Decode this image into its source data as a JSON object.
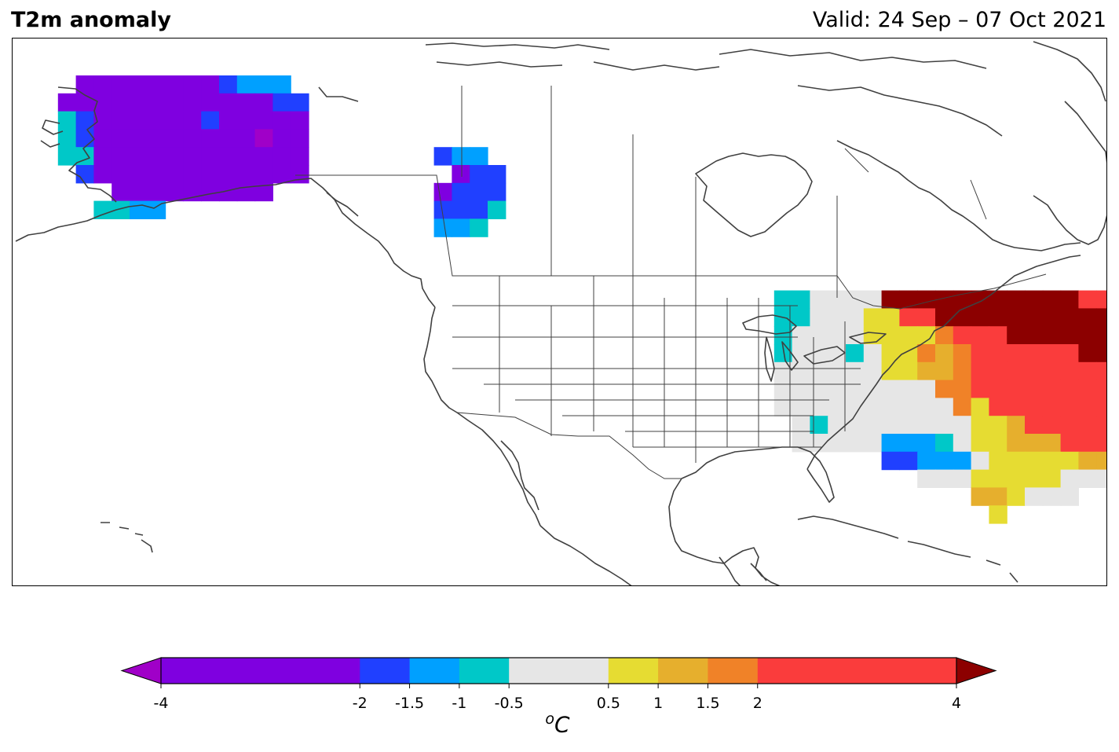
{
  "header": {
    "title": "T2m anomaly",
    "valid": "Valid: 24 Sep – 07 Oct 2021"
  },
  "colorbar": {
    "unit_prefix": "o",
    "unit": "C",
    "extend": "both",
    "boundaries": [
      -4,
      -2,
      -1.5,
      -1,
      -0.5,
      0.5,
      1,
      1.5,
      2,
      4
    ],
    "tick_labels": [
      "-4",
      "-2",
      "-1.5",
      "-1",
      "-0.5",
      "0.5",
      "1",
      "1.5",
      "2",
      "4"
    ],
    "colors": [
      "#7f00e0",
      "#2040ff",
      "#00a0ff",
      "#00c8c8",
      "#e6e6e6",
      "#e6dc32",
      "#e6af2d",
      "#f08228",
      "#fa3c3c"
    ],
    "under_color": "#a000c8",
    "over_color": "#8c0000"
  },
  "map": {
    "region": "North America",
    "coastline_color": "#404040",
    "anomaly_classes": {
      "P": "#7f00e0",
      "M": "#a000c8",
      "B": "#2040ff",
      "S": "#00a0ff",
      "C": "#00c8c8",
      "G": "#e6e6e6",
      "Y": "#e6dc32",
      "O": "#e6af2d",
      "R": "#f08228",
      "E": "#fa3c3c",
      "D": "#8c0000"
    }
  }
}
